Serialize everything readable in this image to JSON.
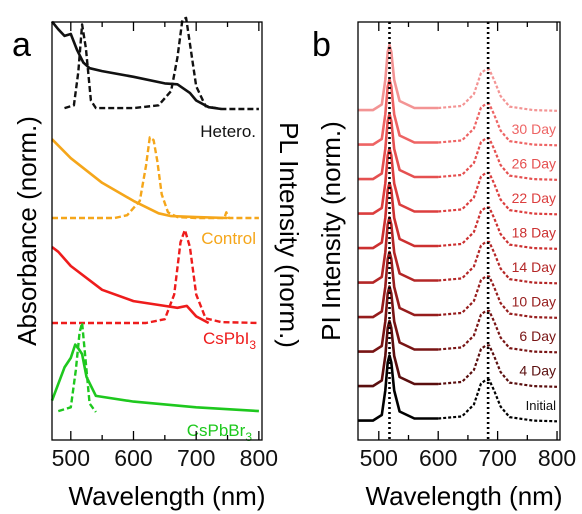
{
  "figure": {
    "panel_a_letter": "a",
    "panel_b_letter": "b",
    "colors": {
      "black": "#111111",
      "orange": "#f5a61a",
      "red": "#ee1c1c",
      "green": "#1ec81e",
      "frame": "#000000",
      "divider": "#000000"
    }
  },
  "chart_data": [
    {
      "type": "line",
      "panel": "a",
      "xlabel": "Wavelength (nm)",
      "ylabel_left": "Absorbance (norm.)",
      "ylabel_right": "PL Intensity (norm.)",
      "xlim": [
        470,
        805
      ],
      "xticks": [
        500,
        600,
        700,
        800
      ],
      "xtick_labels": [
        "500",
        "600",
        "700",
        "800"
      ],
      "ylim": [
        0,
        4
      ],
      "grid": false,
      "legend": "inline labels at the right of each trace",
      "samples": [
        {
          "label": "Hetero.",
          "color": "#111111",
          "offset": 3,
          "absorbance": {
            "style": "solid",
            "x": [
              470,
              480,
              490,
              500,
              510,
              520,
              530,
              550,
              600,
              650,
              670,
              690,
              700,
              720,
              740
            ],
            "y": [
              0.93,
              0.85,
              0.78,
              0.8,
              0.63,
              0.5,
              0.44,
              0.41,
              0.35,
              0.28,
              0.27,
              0.18,
              0.1,
              0.03,
              0.01
            ]
          },
          "pl": {
            "style": "dashed",
            "x": [
              490,
              505,
              512,
              518,
              524,
              532,
              540,
              600,
              640,
              660,
              670,
              678,
              684,
              690,
              700,
              715,
              740,
              780,
              800
            ],
            "y": [
              0.02,
              0.05,
              0.4,
              0.9,
              0.65,
              0.1,
              0.02,
              0.02,
              0.05,
              0.2,
              0.55,
              0.95,
              0.97,
              0.7,
              0.25,
              0.04,
              0.01,
              0.01,
              0.01
            ]
          }
        },
        {
          "label": "Control",
          "color": "#f5a61a",
          "offset": 2,
          "absorbance": {
            "style": "solid",
            "x": [
              470,
              500,
              550,
              600,
              640,
              660,
              700,
              750
            ],
            "y": [
              0.83,
              0.63,
              0.37,
              0.18,
              0.05,
              0.02,
              0.01,
              0.0
            ]
          },
          "pl": {
            "style": "dashed",
            "x": [
              470,
              570,
              590,
              610,
              620,
              626,
              632,
              638,
              645,
              655,
              670,
              700,
              745,
              748,
              752,
              800
            ],
            "y": [
              0.0,
              0.0,
              0.03,
              0.18,
              0.55,
              0.85,
              0.82,
              0.6,
              0.25,
              0.06,
              0.01,
              0.0,
              0.0,
              0.06,
              0.0,
              0.0
            ]
          }
        },
        {
          "label": "CsPbI",
          "label_subscript": "3",
          "color": "#ee1c1c",
          "offset": 1,
          "absorbance": {
            "style": "solid",
            "x": [
              470,
              480,
              500,
              550,
              600,
              650,
              670,
              685,
              700,
              720
            ],
            "y": [
              0.8,
              0.75,
              0.6,
              0.35,
              0.23,
              0.18,
              0.16,
              0.18,
              0.07,
              0.0
            ]
          },
          "pl": {
            "style": "dashed",
            "x": [
              470,
              620,
              650,
              665,
              675,
              682,
              690,
              700,
              715,
              740,
              800
            ],
            "y": [
              0.0,
              0.0,
              0.04,
              0.3,
              0.85,
              0.98,
              0.8,
              0.3,
              0.05,
              0.01,
              0.0
            ]
          }
        },
        {
          "label": "CsPbBr",
          "label_subscript": "3",
          "color": "#1ec81e",
          "offset": 0,
          "absorbance": {
            "style": "solid",
            "x": [
              470,
              490,
              500,
              507,
              512,
              518,
              525,
              540,
              600,
              700,
              800
            ],
            "y": [
              0.13,
              0.48,
              0.58,
              0.72,
              0.68,
              0.62,
              0.38,
              0.18,
              0.12,
              0.06,
              0.02
            ]
          },
          "pl": {
            "style": "dashed",
            "x": [
              480,
              500,
              508,
              514,
              518,
              523,
              530,
              540
            ],
            "y": [
              0.02,
              0.06,
              0.45,
              0.85,
              0.95,
              0.6,
              0.1,
              0.01
            ]
          }
        }
      ]
    },
    {
      "type": "line",
      "panel": "b",
      "xlabel": "Wavelength (nm)",
      "ylabel": "PI Intensity (norm.)",
      "xlim": [
        465,
        805
      ],
      "xticks": [
        500,
        600,
        700,
        800
      ],
      "xtick_labels": [
        "500",
        "600",
        "700",
        "800"
      ],
      "ylim": [
        0,
        10
      ],
      "grid": false,
      "legend": "inline labels at the right of each trace",
      "reference_lines_x": [
        518,
        684
      ],
      "curve_shape": {
        "x": [
          465,
          490,
          505,
          511,
          515,
          518,
          521,
          526,
          535,
          560,
          600,
          640,
          660,
          672,
          680,
          686,
          694,
          705,
          720,
          760,
          800
        ],
        "y": [
          0.02,
          0.02,
          0.1,
          0.45,
          0.85,
          0.95,
          0.85,
          0.45,
          0.15,
          0.05,
          0.05,
          0.08,
          0.25,
          0.55,
          0.6,
          0.6,
          0.45,
          0.22,
          0.07,
          0.02,
          0.01
        ]
      },
      "series": [
        {
          "name": "Initial",
          "color": "#000000",
          "offset": 0
        },
        {
          "name": "4 Day",
          "color": "#5a0e0e",
          "offset": 1
        },
        {
          "name": "6 Day",
          "color": "#781414",
          "offset": 2
        },
        {
          "name": "10 Day",
          "color": "#961c1c",
          "offset": 3
        },
        {
          "name": "14 Day",
          "color": "#b42626",
          "offset": 4
        },
        {
          "name": "18 Day",
          "color": "#cc3030",
          "offset": 5
        },
        {
          "name": "22 Day",
          "color": "#dc3e3e",
          "offset": 6
        },
        {
          "name": "26 Day",
          "color": "#e55050",
          "offset": 7
        },
        {
          "name": "30 Day",
          "color": "#ee6464",
          "offset": 8
        },
        {
          "name": "",
          "color": "#f39494",
          "offset": 9
        }
      ]
    }
  ]
}
